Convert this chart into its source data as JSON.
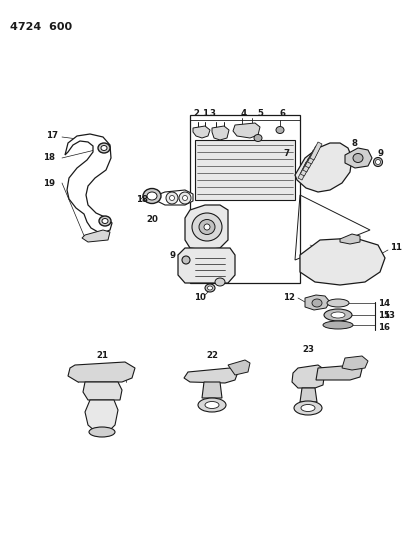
{
  "title": "4724  600",
  "bg_color": "#ffffff",
  "line_color": "#1a1a1a",
  "fig_width": 4.08,
  "fig_height": 5.33,
  "dpi": 100
}
